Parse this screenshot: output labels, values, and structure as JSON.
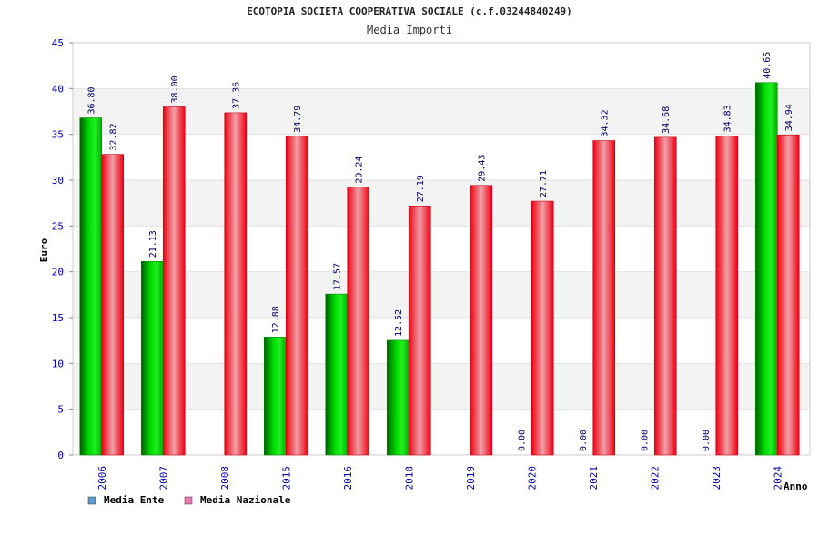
{
  "chart_data": {
    "type": "bar",
    "title": "ECOTOPIA SOCIETA COOPERATIVA SOCIALE (c.f.03244840249)",
    "subtitle": "Media Importi",
    "xlabel": "Anno",
    "ylabel": "Euro",
    "ylim": [
      0,
      45
    ],
    "yticks": [
      0,
      5,
      10,
      15,
      20,
      25,
      30,
      35,
      40,
      45
    ],
    "grid": true,
    "legend_position": "bottom-left",
    "categories": [
      "2006",
      "2007",
      "2008",
      "2015",
      "2016",
      "2018",
      "2019",
      "2020",
      "2021",
      "2022",
      "2023",
      "2024"
    ],
    "series": [
      {
        "name": "Media Ente",
        "color": "#00cc00",
        "legend_color": "#5b9bd5",
        "values": [
          36.8,
          21.13,
          null,
          12.88,
          17.57,
          12.52,
          null,
          0.0,
          0.0,
          0.0,
          0.0,
          40.65
        ],
        "labels": [
          "36.80",
          "21.13",
          "",
          "12.88",
          "17.57",
          "12.52",
          "",
          "0.00",
          "0.00",
          "0.00",
          "0.00",
          "40.65"
        ]
      },
      {
        "name": "Media Nazionale",
        "color": "#ee1122",
        "legend_color": "#e87bb0",
        "values": [
          32.82,
          38.0,
          37.36,
          34.79,
          29.24,
          27.19,
          29.43,
          27.71,
          34.32,
          34.68,
          34.83,
          34.94
        ],
        "labels": [
          "32.82",
          "38.00",
          "37.36",
          "34.79",
          "29.24",
          "27.19",
          "29.43",
          "27.71",
          "34.32",
          "34.68",
          "34.83",
          "34.94"
        ]
      }
    ]
  }
}
